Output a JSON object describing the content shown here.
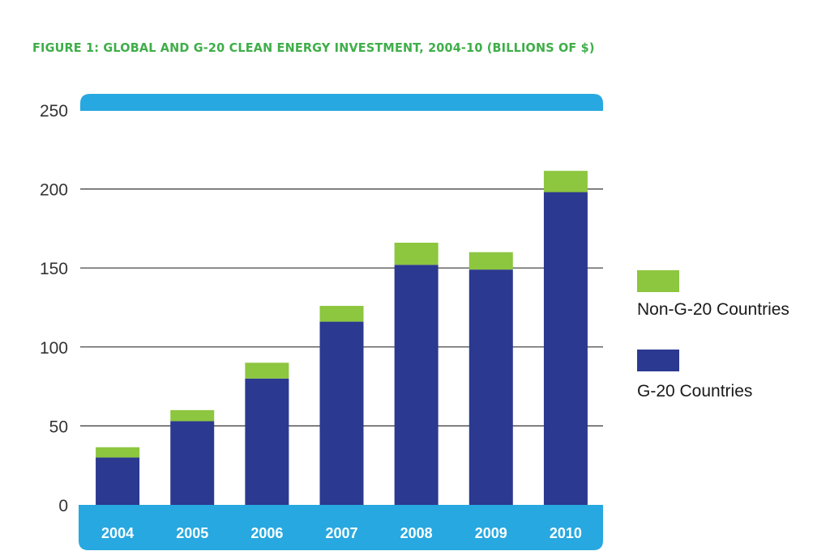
{
  "title": "FIGURE 1: GLOBAL AND G-20 CLEAN ENERGY INVESTMENT, 2004-10 (BILLIONS OF $)",
  "colors": {
    "title": "#3fae49",
    "g20": "#2b3990",
    "non_g20": "#8dc63f",
    "band": "#27a8e0",
    "grid": "#333333"
  },
  "chart_data": {
    "type": "bar",
    "stacked": true,
    "title": "FIGURE 1: GLOBAL AND G-20 CLEAN ENERGY INVESTMENT, 2004-10 (BILLIONS OF $)",
    "xlabel": "",
    "ylabel": "",
    "categories": [
      "2004",
      "2005",
      "2006",
      "2007",
      "2008",
      "2009",
      "2010"
    ],
    "series": [
      {
        "name": "G-20 Countries",
        "values": [
          30,
          53,
          80,
          116,
          152,
          149,
          198
        ]
      },
      {
        "name": "Non-G-20 Countries",
        "values": [
          6.5,
          7,
          10,
          10,
          14,
          11,
          13.5
        ]
      }
    ],
    "totals": [
      36.5,
      60,
      90,
      126,
      166,
      160,
      211.5
    ],
    "ylim": [
      0,
      250
    ],
    "yticks": [
      0,
      50,
      100,
      150,
      200,
      250
    ],
    "grid": true,
    "legend": {
      "placement": "right",
      "entries": [
        {
          "label": "Non-G-20 Countries",
          "series": "Non-G-20 Countries"
        },
        {
          "label": "G-20 Countries",
          "series": "G-20 Countries"
        }
      ]
    }
  }
}
